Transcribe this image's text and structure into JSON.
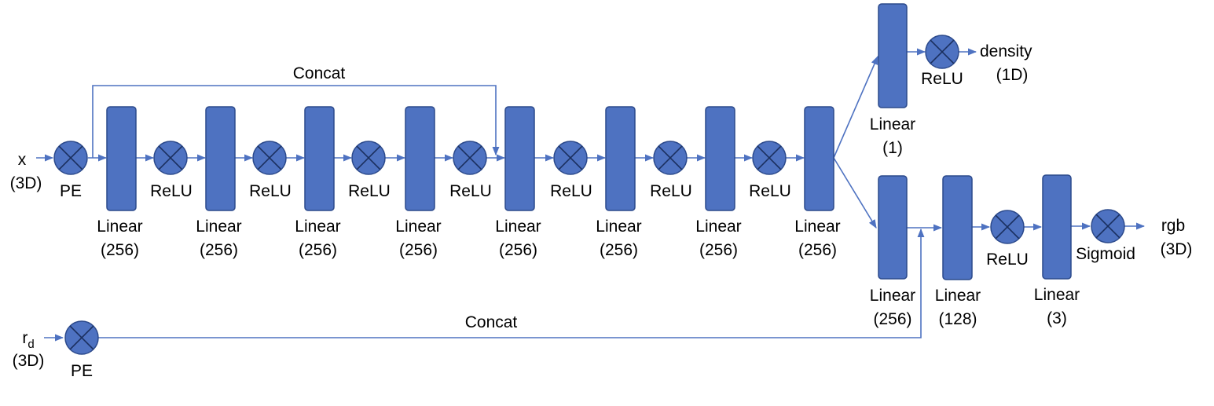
{
  "inputs": {
    "x": {
      "symbol": "x",
      "dim": "(3D)"
    },
    "rd": {
      "symbol": "r",
      "subscript": "d",
      "dim": "(3D)"
    }
  },
  "labels": {
    "pe": "PE",
    "relu": "ReLU",
    "sigmoid": "Sigmoid",
    "linear": "Linear",
    "concat": "Concat",
    "d256": "(256)",
    "d128": "(128)",
    "d3": "(3)",
    "d1": "(1)"
  },
  "outputs": {
    "density": {
      "name": "density",
      "dim": "(1D)"
    },
    "rgb": {
      "name": "rgb",
      "dim": "(3D)"
    }
  },
  "colors": {
    "block_fill": "#4e72c1",
    "block_stroke": "#2c4a8c",
    "wire": "#4e72c1"
  }
}
